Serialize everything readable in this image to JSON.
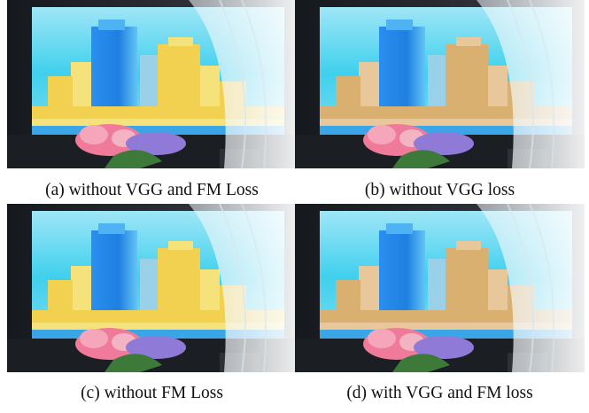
{
  "figure": {
    "panels": [
      {
        "id": "a",
        "caption": "(a) without VGG and FM Loss",
        "tone": "warm"
      },
      {
        "id": "b",
        "caption": "(b) without VGG loss",
        "tone": "cool"
      },
      {
        "id": "c",
        "caption": "(c) without FM Loss",
        "tone": "warm"
      },
      {
        "id": "d",
        "caption": "(d) with VGG and FM loss",
        "tone": "cool"
      }
    ]
  },
  "colors": {
    "sky": "#3fd0ee",
    "tower": "#1f7fe0",
    "warm_buildings": "#f2d050",
    "cool_buildings": "#d9b070",
    "flowers": "#f07a9a",
    "curtain": "#eef6fa"
  }
}
